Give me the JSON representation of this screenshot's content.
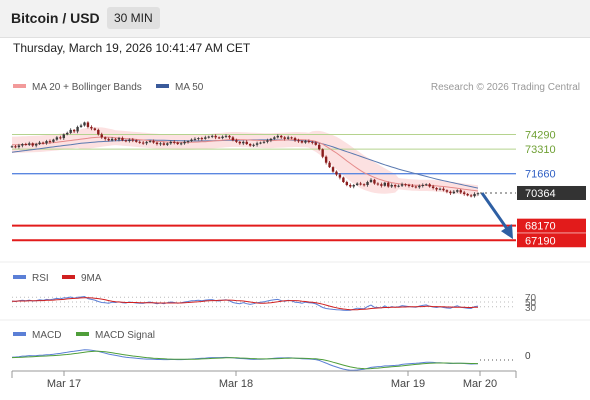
{
  "header": {
    "pair_label": "Bitcoin / USD",
    "timeframe_label": "30 MIN"
  },
  "timestamp": "Thursday, March 19, 2026 10:41:47 AM CET",
  "legend": {
    "ma20_bb": "MA 20 + Bollinger Bands",
    "ma50": "MA 50",
    "copyright": "Research © 2026 Trading Central"
  },
  "colors": {
    "bb_fill": "#fcdede",
    "ma20": "#e58a8a",
    "ma50": "#5a79b0",
    "resistance": "#b5d38e",
    "pivot": "#5b87e0",
    "support": "#e21b1b",
    "current": "#333333",
    "arrow": "#2e5fa3",
    "candle_up": "#3a3a3a",
    "candle_down": "#8a1c1c",
    "rsi": "#5b7fd6",
    "rsi_ma": "#d02020",
    "macd": "#5b7fd6",
    "macd_signal": "#4f9e3a"
  },
  "chart_data": [
    {
      "type": "candlestick",
      "ylim": [
        66200,
        75400
      ],
      "x_ticks": [
        "Mar 17",
        "Mar 18",
        "Mar 19",
        "Mar 20"
      ],
      "close": [
        73500,
        73450,
        73550,
        73650,
        73600,
        73700,
        73550,
        73650,
        73750,
        73700,
        73850,
        73800,
        73950,
        74100,
        74050,
        74300,
        74400,
        74600,
        74500,
        74800,
        74900,
        75100,
        74800,
        74700,
        74600,
        74300,
        74100,
        74000,
        73900,
        74000,
        73950,
        74050,
        73900,
        73850,
        73950,
        73900,
        73800,
        73750,
        73700,
        73800,
        73850,
        73750,
        73650,
        73700,
        73600,
        73700,
        73800,
        73750,
        73650,
        73700,
        73800,
        73850,
        73950,
        74000,
        74050,
        74000,
        74100,
        74150,
        74200,
        74100,
        74050,
        74150,
        74200,
        74100,
        73900,
        73800,
        73700,
        73800,
        73650,
        73550,
        73600,
        73700,
        73750,
        73800,
        73900,
        74000,
        74100,
        74200,
        74100,
        74000,
        74100,
        74050,
        73900,
        73850,
        73750,
        73850,
        73800,
        73750,
        73600,
        73300,
        72800,
        72400,
        72100,
        71800,
        71600,
        71400,
        71100,
        70900,
        70800,
        70900,
        71000,
        70950,
        70900,
        71100,
        71250,
        71000,
        70950,
        70850,
        71050,
        70800,
        70900,
        70800,
        70850,
        70950,
        70900,
        70850,
        70800,
        70750,
        70850,
        70900,
        70950,
        70800,
        70700,
        70600,
        70650,
        70550,
        70450,
        70350,
        70450,
        70550,
        70400,
        70300,
        70200,
        70150,
        70300,
        70350
      ],
      "series": [
        {
          "name": "MA 20",
          "values": [
            73600,
            73600,
            73610,
            73620,
            73630,
            73640,
            73650,
            73660,
            73670,
            73690,
            73710,
            73730,
            73750,
            73770,
            73800,
            73830,
            73860,
            73890,
            73920,
            73950,
            73980,
            74010,
            74040,
            74070,
            74090,
            74110,
            74120,
            74120,
            74110,
            74100,
            74080,
            74060,
            74040,
            74020,
            74000,
            73980,
            73960,
            73940,
            73920,
            73900,
            73880,
            73860,
            73840,
            73820,
            73800,
            73790,
            73780,
            73770,
            73760,
            73760,
            73760,
            73760,
            73770,
            73780,
            73790,
            73800,
            73810,
            73830,
            73850,
            73870,
            73890,
            73910,
            73930,
            73950,
            73960,
            73960,
            73950,
            73940,
            73930,
            73920,
            73910,
            73900,
            73890,
            73880,
            73880,
            73880,
            73890,
            73900,
            73910,
            73920,
            73930,
            73940,
            73950,
            73950,
            73940,
            73930,
            73910,
            73880,
            73830,
            73750,
            73640,
            73500,
            73350,
            73200,
            73050,
            72880,
            72700,
            72520,
            72350,
            72180,
            72020,
            71870,
            71730,
            71620,
            71510,
            71410,
            71320,
            71240,
            71170,
            71110,
            71060,
            71020,
            70990,
            70960,
            70940,
            70920,
            70900,
            70890,
            70880,
            70880,
            70880,
            70870,
            70860,
            70840,
            70820,
            70800,
            70770,
            70740,
            70710,
            70680,
            70650,
            70620,
            70590,
            70560,
            70530,
            70500
          ]
        },
        {
          "name": "MA 50",
          "values": [
            73100,
            73130,
            73160,
            73190,
            73220,
            73250,
            73280,
            73310,
            73340,
            73370,
            73400,
            73430,
            73460,
            73490,
            73520,
            73550,
            73580,
            73610,
            73640,
            73670,
            73700,
            73720,
            73740,
            73760,
            73780,
            73800,
            73815,
            73830,
            73845,
            73860,
            73870,
            73880,
            73890,
            73900,
            73905,
            73910,
            73915,
            73920,
            73920,
            73920,
            73920,
            73915,
            73910,
            73905,
            73900,
            73895,
            73890,
            73885,
            73880,
            73875,
            73870,
            73865,
            73860,
            73860,
            73860,
            73860,
            73865,
            73870,
            73875,
            73880,
            73885,
            73890,
            73895,
            73900,
            73905,
            73910,
            73915,
            73920,
            73925,
            73930,
            73930,
            73930,
            73930,
            73930,
            73930,
            73930,
            73930,
            73930,
            73930,
            73925,
            73920,
            73915,
            73910,
            73900,
            73885,
            73865,
            73840,
            73810,
            73770,
            73720,
            73660,
            73600,
            73530,
            73460,
            73380,
            73300,
            73220,
            73140,
            73060,
            72980,
            72900,
            72820,
            72740,
            72660,
            72580,
            72500,
            72420,
            72340,
            72260,
            72180,
            72110,
            72040,
            71970,
            71900,
            71840,
            71780,
            71720,
            71660,
            71600,
            71540,
            71480,
            71420,
            71360,
            71300,
            71240,
            71190,
            71140,
            71090,
            71040,
            70990,
            70940,
            70890,
            70840,
            70790,
            70740,
            70690
          ]
        }
      ],
      "levels": [
        {
          "label": "74290",
          "value": 74290,
          "kind": "resistance"
        },
        {
          "label": "73310",
          "value": 73310,
          "kind": "resistance"
        },
        {
          "label": "71660",
          "value": 71660,
          "kind": "pivot"
        },
        {
          "label": "70364",
          "value": 70364,
          "kind": "current"
        },
        {
          "label": "68170",
          "value": 68170,
          "kind": "support"
        },
        {
          "label": "67190",
          "value": 67190,
          "kind": "support"
        }
      ],
      "forecast_arrow": {
        "from": 70364,
        "to": 67400
      }
    },
    {
      "type": "line",
      "series": [
        {
          "name": "RSI",
          "values": [
            54,
            52,
            55,
            57,
            55,
            58,
            54,
            56,
            59,
            57,
            61,
            59,
            62,
            65,
            63,
            67,
            68,
            71,
            66,
            70,
            71,
            73,
            64,
            61,
            58,
            52,
            48,
            47,
            45,
            49,
            48,
            51,
            47,
            46,
            50,
            48,
            46,
            45,
            44,
            48,
            50,
            46,
            43,
            46,
            43,
            47,
            50,
            48,
            45,
            47,
            50,
            52,
            55,
            56,
            57,
            55,
            58,
            59,
            60,
            56,
            54,
            58,
            59,
            55,
            48,
            45,
            43,
            47,
            43,
            40,
            43,
            47,
            49,
            51,
            54,
            57,
            59,
            61,
            56,
            53,
            57,
            55,
            49,
            48,
            45,
            49,
            47,
            46,
            42,
            35,
            27,
            23,
            21,
            19,
            18,
            17,
            16,
            15,
            16,
            20,
            24,
            23,
            22,
            31,
            37,
            28,
            27,
            25,
            34,
            26,
            31,
            28,
            30,
            35,
            33,
            31,
            29,
            28,
            33,
            36,
            38,
            32,
            29,
            27,
            30,
            27,
            25,
            24,
            30,
            34,
            28,
            26,
            24,
            23,
            31,
            33
          ]
        },
        {
          "name": "9MA",
          "values": [
            53,
            53,
            54,
            54,
            54,
            55,
            55,
            55,
            56,
            56,
            57,
            57,
            58,
            59,
            60,
            61,
            63,
            64,
            65,
            66,
            67,
            68,
            68,
            67,
            66,
            64,
            62,
            59,
            56,
            53,
            51,
            50,
            49,
            48,
            48,
            48,
            48,
            47,
            47,
            47,
            47,
            47,
            46,
            46,
            46,
            46,
            46,
            46,
            46,
            46,
            47,
            48,
            49,
            50,
            51,
            52,
            54,
            55,
            56,
            56,
            57,
            57,
            58,
            58,
            57,
            56,
            55,
            54,
            52,
            50,
            48,
            46,
            45,
            45,
            46,
            47,
            49,
            51,
            53,
            55,
            56,
            56,
            56,
            55,
            53,
            52,
            50,
            49,
            47,
            44,
            41,
            37,
            33,
            29,
            26,
            23,
            21,
            19,
            18,
            18,
            18,
            19,
            20,
            21,
            23,
            24,
            25,
            26,
            27,
            27,
            28,
            28,
            28,
            29,
            29,
            30,
            30,
            30,
            31,
            31,
            32,
            32,
            31,
            31,
            30,
            30,
            29,
            29,
            28,
            28,
            28,
            28,
            27,
            27,
            28,
            28
          ]
        }
      ],
      "ylim": [
        0,
        100
      ],
      "y_ticks": [
        {
          "label": "70",
          "value": 70
        },
        {
          "label": "50",
          "value": 50
        },
        {
          "label": "30",
          "value": 30
        }
      ]
    },
    {
      "type": "line",
      "series": [
        {
          "name": "MACD",
          "values": [
            80,
            85,
            95,
            110,
            115,
            125,
            120,
            125,
            135,
            140,
            150,
            155,
            165,
            180,
            190,
            205,
            220,
            240,
            250,
            265,
            280,
            295,
            290,
            280,
            265,
            245,
            220,
            195,
            170,
            150,
            130,
            115,
            95,
            80,
            70,
            60,
            50,
            40,
            30,
            25,
            25,
            20,
            15,
            15,
            10,
            12,
            15,
            15,
            12,
            12,
            15,
            20,
            28,
            35,
            42,
            48,
            55,
            62,
            68,
            70,
            70,
            72,
            75,
            72,
            62,
            52,
            42,
            40,
            32,
            22,
            18,
            20,
            22,
            25,
            32,
            40,
            48,
            57,
            60,
            60,
            62,
            60,
            52,
            45,
            35,
            32,
            28,
            22,
            12,
            -10,
            -50,
            -90,
            -130,
            -170,
            -200,
            -230,
            -260,
            -280,
            -295,
            -295,
            -285,
            -275,
            -265,
            -240,
            -210,
            -200,
            -190,
            -185,
            -170,
            -170,
            -160,
            -155,
            -145,
            -125,
            -115,
            -105,
            -100,
            -95,
            -85,
            -75,
            -65,
            -65,
            -70,
            -78,
            -80,
            -85,
            -92,
            -100,
            -98,
            -92,
            -95,
            -100,
            -108,
            -115,
            -110,
            -105
          ]
        },
        {
          "name": "MACD Signal",
          "values": [
            70,
            72,
            75,
            80,
            85,
            90,
            95,
            100,
            105,
            110,
            115,
            120,
            125,
            132,
            140,
            148,
            158,
            170,
            182,
            195,
            208,
            222,
            235,
            243,
            248,
            248,
            243,
            233,
            220,
            205,
            190,
            175,
            158,
            143,
            128,
            115,
            103,
            91,
            79,
            69,
            60,
            52,
            45,
            39,
            33,
            29,
            26,
            24,
            22,
            21,
            20,
            20,
            21,
            24,
            27,
            31,
            36,
            41,
            46,
            51,
            55,
            58,
            62,
            64,
            64,
            62,
            58,
            55,
            50,
            44,
            39,
            35,
            32,
            31,
            31,
            33,
            36,
            40,
            44,
            48,
            51,
            53,
            53,
            52,
            49,
            45,
            42,
            38,
            33,
            24,
            10,
            -10,
            -35,
            -62,
            -90,
            -118,
            -146,
            -172,
            -196,
            -215,
            -230,
            -240,
            -247,
            -248,
            -245,
            -238,
            -230,
            -222,
            -212,
            -204,
            -195,
            -187,
            -178,
            -168,
            -157,
            -146,
            -136,
            -127,
            -118,
            -109,
            -100,
            -93,
            -88,
            -86,
            -85,
            -85,
            -86,
            -89,
            -91,
            -92,
            -93,
            -95,
            -97,
            -100,
            -101,
            -102
          ]
        }
      ],
      "y_ticks": [
        {
          "label": "0",
          "value": 0
        }
      ]
    }
  ],
  "rsi_legend": {
    "rsi": "RSI",
    "ma": "9MA"
  },
  "macd_legend": {
    "macd": "MACD",
    "signal": "MACD Signal"
  }
}
